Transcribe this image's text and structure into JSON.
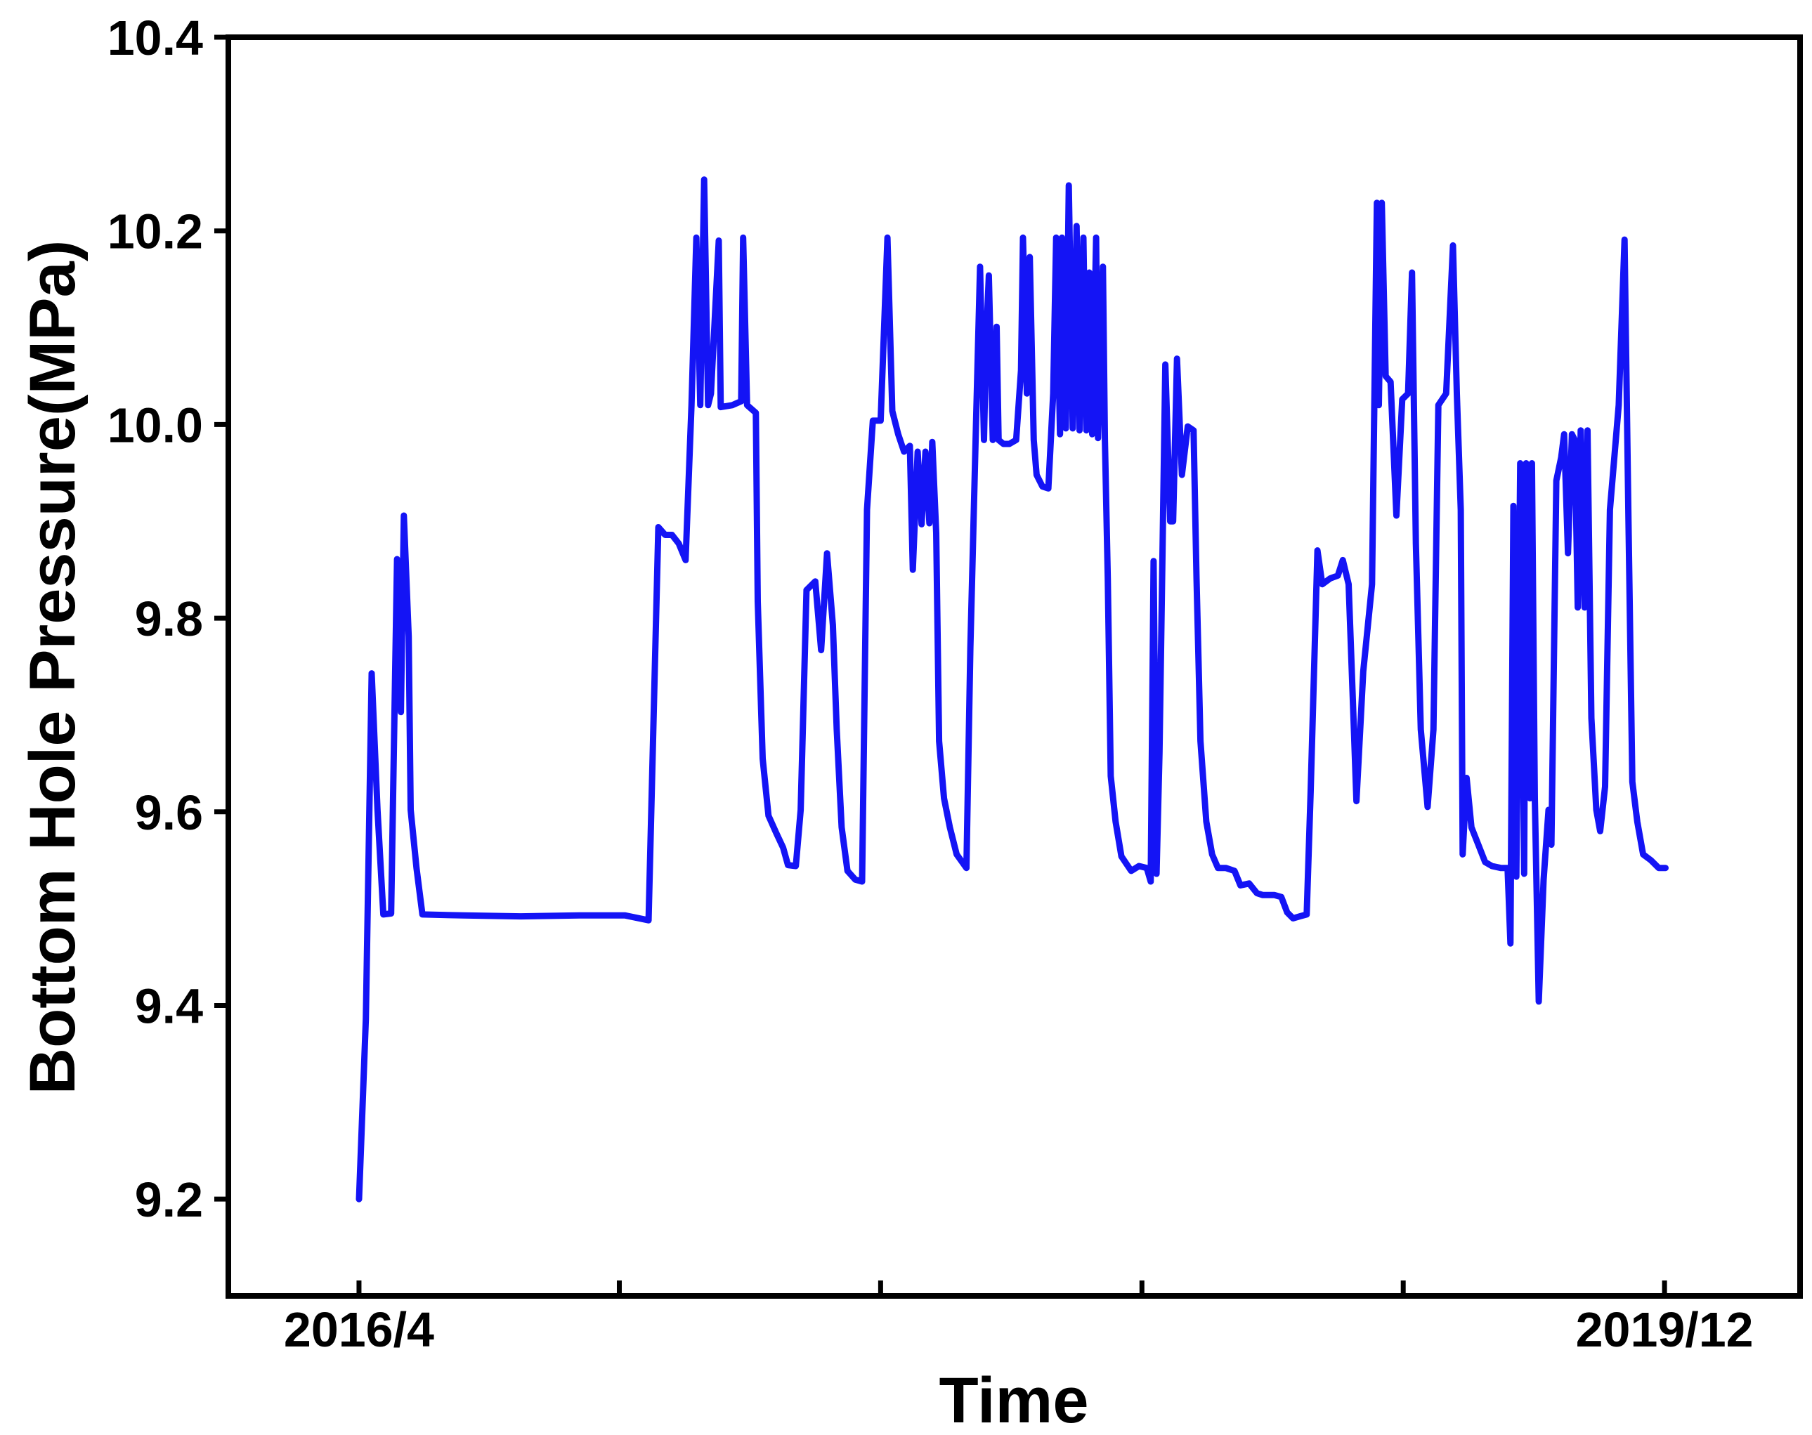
{
  "chart_data": {
    "type": "line",
    "xlabel": "Time",
    "ylabel": "Bottom Hole Pressure(MPa)",
    "xlim": [
      "2015-11-19",
      "2020-04-18"
    ],
    "ylim": [
      9.1,
      10.4
    ],
    "grid": false,
    "yticks": [
      9.2,
      9.4,
      9.6,
      9.8,
      10.0,
      10.2,
      10.4
    ],
    "ytick_labels": [
      "9.2",
      "9.4",
      "9.6",
      "9.8",
      "10.0",
      "10.2",
      "10.4"
    ],
    "xticks": [
      "2016-04-01",
      "2016-12-24",
      "2017-09-18",
      "2018-06-13",
      "2019-03-08",
      "2019-12-01"
    ],
    "xtick_labels": [
      "2016/4",
      "",
      "",
      "",
      "",
      "2019/12"
    ],
    "line_color": "#1414f5",
    "frame_color": "#000000",
    "x": [
      "2016-04-01",
      "2016-04-08",
      "2016-04-14",
      "2016-04-20",
      "2016-04-26",
      "2016-05-04",
      "2016-05-10",
      "2016-05-14",
      "2016-05-17",
      "2016-05-22",
      "2016-05-24",
      "2016-05-30",
      "2016-06-05",
      "2016-07-17",
      "2016-09-14",
      "2016-11-13",
      "2016-12-30",
      "2017-01-23",
      "2017-02-02",
      "2017-02-09",
      "2017-02-16",
      "2017-02-23",
      "2017-03-02",
      "2017-03-08",
      "2017-03-13",
      "2017-03-17",
      "2017-03-21",
      "2017-03-25",
      "2017-03-28",
      "2017-04-05",
      "2017-04-07",
      "2017-04-19",
      "2017-04-28",
      "2017-04-30",
      "2017-05-04",
      "2017-05-13",
      "2017-05-15",
      "2017-05-20",
      "2017-05-26",
      "2017-06-03",
      "2017-06-10",
      "2017-06-15",
      "2017-06-23",
      "2017-06-28",
      "2017-07-04",
      "2017-07-13",
      "2017-07-19",
      "2017-07-25",
      "2017-07-31",
      "2017-08-04",
      "2017-08-09",
      "2017-08-15",
      "2017-08-23",
      "2017-08-30",
      "2017-09-04",
      "2017-09-10",
      "2017-09-18",
      "2017-09-25",
      "2017-09-30",
      "2017-10-06",
      "2017-10-12",
      "2017-10-18",
      "2017-10-21",
      "2017-10-26",
      "2017-10-30",
      "2017-11-03",
      "2017-11-07",
      "2017-11-10",
      "2017-11-14",
      "2017-11-17",
      "2017-11-22",
      "2017-11-28",
      "2017-12-05",
      "2017-12-15",
      "2017-12-19",
      "2017-12-25",
      "2017-12-29",
      "2018-01-02",
      "2018-01-04",
      "2018-01-07",
      "2018-01-11",
      "2018-01-15",
      "2018-01-17",
      "2018-01-22",
      "2018-01-28",
      "2018-02-04",
      "2018-02-09",
      "2018-02-11",
      "2018-02-15",
      "2018-02-18",
      "2018-02-22",
      "2018-02-25",
      "2018-03-03",
      "2018-03-09",
      "2018-03-14",
      "2018-03-17",
      "2018-03-21",
      "2018-03-23",
      "2018-03-27",
      "2018-03-30",
      "2018-04-03",
      "2018-04-07",
      "2018-04-10",
      "2018-04-14",
      "2018-04-17",
      "2018-04-20",
      "2018-04-23",
      "2018-04-27",
      "2018-04-29",
      "2018-05-04",
      "2018-05-06",
      "2018-05-09",
      "2018-05-12",
      "2018-05-17",
      "2018-05-23",
      "2018-06-02",
      "2018-06-10",
      "2018-06-18",
      "2018-06-22",
      "2018-06-25",
      "2018-06-28",
      "2018-07-01",
      "2018-07-07",
      "2018-07-12",
      "2018-07-15",
      "2018-07-19",
      "2018-07-24",
      "2018-07-30",
      "2018-08-05",
      "2018-08-08",
      "2018-08-12",
      "2018-08-18",
      "2018-08-24",
      "2018-08-30",
      "2018-09-07",
      "2018-09-16",
      "2018-09-22",
      "2018-10-01",
      "2018-10-09",
      "2018-10-15",
      "2018-10-27",
      "2018-11-03",
      "2018-11-09",
      "2018-11-15",
      "2018-11-22",
      "2018-11-29",
      "2018-12-03",
      "2018-12-10",
      "2018-12-15",
      "2018-12-23",
      "2018-12-31",
      "2019-01-05",
      "2019-01-11",
      "2019-01-16",
      "2019-01-19",
      "2019-01-26",
      "2019-02-04",
      "2019-02-09",
      "2019-02-11",
      "2019-02-14",
      "2019-02-18",
      "2019-02-23",
      "2019-03-01",
      "2019-03-07",
      "2019-03-13",
      "2019-03-17",
      "2019-03-21",
      "2019-03-26",
      "2019-04-02",
      "2019-04-08",
      "2019-04-13",
      "2019-04-21",
      "2019-04-28",
      "2019-05-02",
      "2019-05-06",
      "2019-05-08",
      "2019-05-12",
      "2019-05-17",
      "2019-05-24",
      "2019-05-31",
      "2019-06-07",
      "2019-06-16",
      "2019-06-23",
      "2019-06-26",
      "2019-06-29",
      "2019-07-02",
      "2019-07-06",
      "2019-07-10",
      "2019-07-12",
      "2019-07-16",
      "2019-07-18",
      "2019-07-21",
      "2019-07-25",
      "2019-07-30",
      "2019-08-04",
      "2019-08-07",
      "2019-08-12",
      "2019-08-17",
      "2019-08-20",
      "2019-08-24",
      "2019-08-28",
      "2019-08-31",
      "2019-09-03",
      "2019-09-06",
      "2019-09-10",
      "2019-09-13",
      "2019-09-17",
      "2019-09-22",
      "2019-09-26",
      "2019-10-01",
      "2019-10-06",
      "2019-10-15",
      "2019-10-21",
      "2019-10-25",
      "2019-10-29",
      "2019-11-03",
      "2019-11-09",
      "2019-11-17",
      "2019-11-25",
      "2019-12-02"
    ],
    "y": [
      9.2,
      9.386,
      9.743,
      9.602,
      9.494,
      9.495,
      9.861,
      9.703,
      9.906,
      9.781,
      9.602,
      9.542,
      9.494,
      9.493,
      9.492,
      9.493,
      9.493,
      9.488,
      9.894,
      9.886,
      9.886,
      9.877,
      9.86,
      10.02,
      10.193,
      10.02,
      10.253,
      10.02,
      10.032,
      10.19,
      10.018,
      10.02,
      10.024,
      10.193,
      10.02,
      10.012,
      9.817,
      9.655,
      9.596,
      9.578,
      9.563,
      9.545,
      9.544,
      9.602,
      9.829,
      9.838,
      9.767,
      9.867,
      9.793,
      9.685,
      9.584,
      9.539,
      9.53,
      9.528,
      9.912,
      10.004,
      10.004,
      10.193,
      10.014,
      9.99,
      9.972,
      9.978,
      9.85,
      9.972,
      9.897,
      9.972,
      9.898,
      9.982,
      9.888,
      9.673,
      9.614,
      9.584,
      9.556,
      9.542,
      9.769,
      10.008,
      10.163,
      9.984,
      10.08,
      10.154,
      9.984,
      10.101,
      9.984,
      9.98,
      9.98,
      9.984,
      10.056,
      10.193,
      10.032,
      10.173,
      9.984,
      9.948,
      9.936,
      9.934,
      10.032,
      10.193,
      9.99,
      10.193,
      9.996,
      10.247,
      9.996,
      10.205,
      9.994,
      10.193,
      9.994,
      10.157,
      9.99,
      10.193,
      9.986,
      10.163,
      9.984,
      9.841,
      9.637,
      9.59,
      9.554,
      9.539,
      9.544,
      9.542,
      9.528,
      9.859,
      9.536,
      9.661,
      10.062,
      9.9,
      9.9,
      10.068,
      9.948,
      9.998,
      9.994,
      9.841,
      9.673,
      9.59,
      9.556,
      9.542,
      9.542,
      9.539,
      9.524,
      9.526,
      9.516,
      9.514,
      9.514,
      9.512,
      9.496,
      9.49,
      9.492,
      9.494,
      9.62,
      9.87,
      9.835,
      9.841,
      9.844,
      9.86,
      9.835,
      9.697,
      9.611,
      9.745,
      9.835,
      10.229,
      10.02,
      10.229,
      10.05,
      10.044,
      9.906,
      10.026,
      10.032,
      10.157,
      9.877,
      9.685,
      9.605,
      9.685,
      10.02,
      10.032,
      10.185,
      10.032,
      9.912,
      9.556,
      9.635,
      9.584,
      9.566,
      9.548,
      9.544,
      9.542,
      9.542,
      9.464,
      9.916,
      9.533,
      9.96,
      9.536,
      9.96,
      9.614,
      9.96,
      9.614,
      9.404,
      9.53,
      9.602,
      9.566,
      9.942,
      9.966,
      9.99,
      9.867,
      9.99,
      9.984,
      9.811,
      9.994,
      9.811,
      9.994,
      9.697,
      9.602,
      9.58,
      9.626,
      9.912,
      10.02,
      10.191,
      9.9,
      9.631,
      9.59,
      9.556,
      9.55,
      9.542,
      9.542
    ]
  }
}
